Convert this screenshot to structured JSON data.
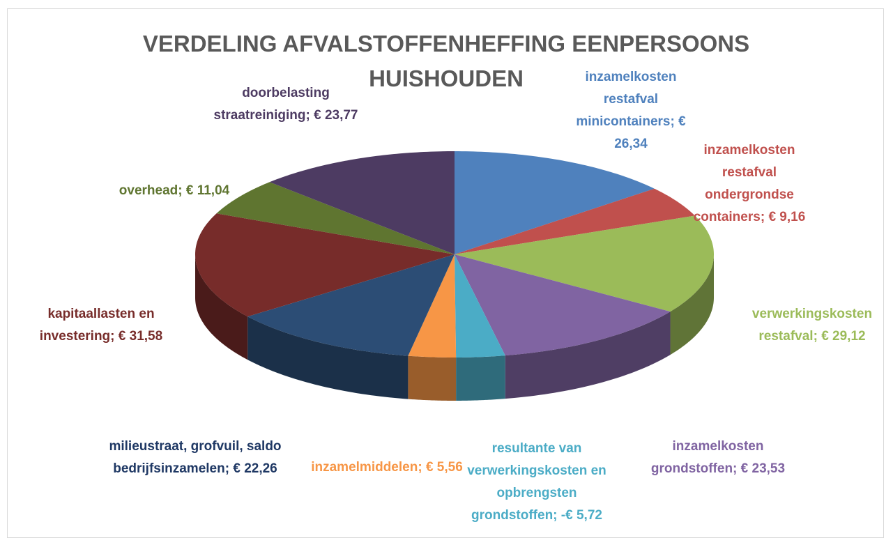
{
  "chart_data": {
    "type": "pie",
    "title": "VERDELING AFVALSTOFFENHEFFING EENPERSOONS HUISHOUDEN",
    "categories": [
      "inzamelkosten restafval minicontainers;",
      "inzamelkosten restafval ondergrondse containers;",
      "verwerkingskosten restafval;",
      "inzamelkosten grondstoffen;",
      "resultante van verwerkingskosten en opbrengsten grondstoffen;",
      "inzamelmiddelen;",
      "milieustraat, grofvuil, saldo bedrijfsinzamelen;",
      "kapitaallasten en investering;",
      "overhead;",
      "doorbelasting straatreiniging;"
    ],
    "values": [
      26.34,
      9.16,
      29.12,
      23.53,
      -5.72,
      5.56,
      22.26,
      31.58,
      11.04,
      23.77
    ],
    "value_labels": [
      "€ 26,34",
      "€ 9,16",
      "€ 29,12",
      "€ 23,53",
      "-€ 5,72",
      "€ 5,56",
      "€ 22,26",
      "€ 31,58",
      "€ 11,04",
      "€ 23,77"
    ],
    "colors": [
      "#4f81bd",
      "#c0504d",
      "#9bbb59",
      "#8064a2",
      "#4bacc6",
      "#f79646",
      "#2c4d75",
      "#772c2a",
      "#5f7530",
      "#4d3b62"
    ]
  }
}
